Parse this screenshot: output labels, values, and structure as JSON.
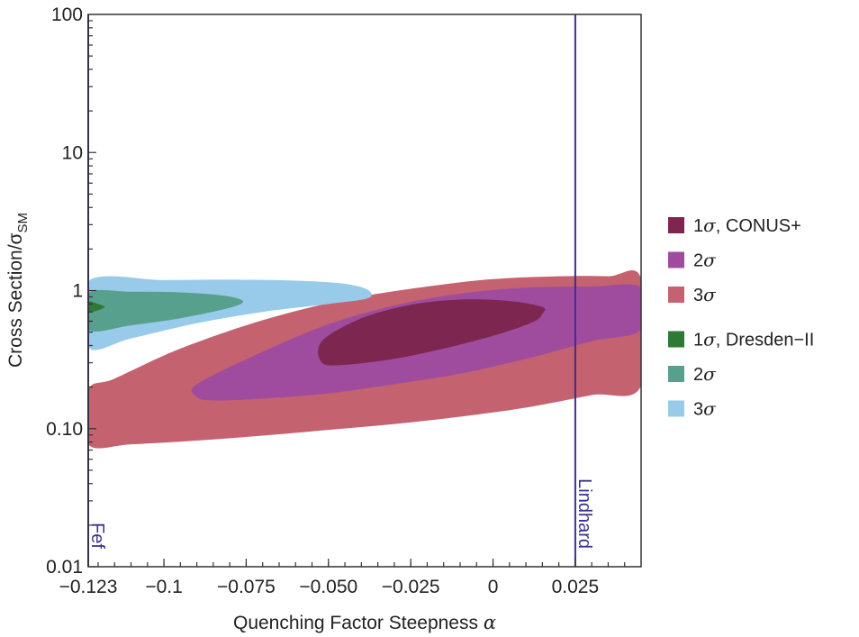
{
  "chart_data": {
    "type": "contour",
    "xlabel": "Quenching Factor Steepness",
    "xlabel_symbol": "α",
    "ylabel": "Cross Section/σ",
    "ylabel_subscript": "SM",
    "xlim": [
      -0.123,
      0.045
    ],
    "ylim": [
      0.01,
      100
    ],
    "yscale": "log",
    "x_ticks": [
      {
        "value": -0.123,
        "label": "−0.123"
      },
      {
        "value": -0.1,
        "label": "−0.1"
      },
      {
        "value": -0.075,
        "label": "−0.075"
      },
      {
        "value": -0.05,
        "label": "−0.050"
      },
      {
        "value": -0.025,
        "label": "−0.025"
      },
      {
        "value": 0,
        "label": "0"
      },
      {
        "value": 0.025,
        "label": "0.025"
      }
    ],
    "y_ticks": [
      {
        "value": 0.01,
        "label": "0.01"
      },
      {
        "value": 0.1,
        "label": "0.10"
      },
      {
        "value": 1,
        "label": "1"
      },
      {
        "value": 10,
        "label": "10"
      },
      {
        "value": 100,
        "label": "100"
      }
    ],
    "vertical_lines": [
      {
        "name": "Fef",
        "x": -0.123,
        "color": "#3a2f8f"
      },
      {
        "name": "Lindhard",
        "x": 0.025,
        "color": "#3a2f8f"
      }
    ],
    "regions": [
      {
        "label": "3σ",
        "group": "CONUS+",
        "color": "#c4626f",
        "x": [
          0.045,
          0.035,
          0.02,
          0.0,
          -0.02,
          -0.045,
          -0.07,
          -0.095,
          -0.115,
          -0.123,
          -0.123,
          -0.11,
          -0.09,
          -0.07,
          -0.05,
          -0.03,
          -0.01,
          0.01,
          0.03,
          0.045
        ],
        "y": [
          1.22,
          1.27,
          1.27,
          1.21,
          1.07,
          0.86,
          0.61,
          0.38,
          0.23,
          0.19,
          0.077,
          0.077,
          0.082,
          0.089,
          0.098,
          0.108,
          0.122,
          0.142,
          0.175,
          0.205
        ]
      },
      {
        "label": "2σ",
        "group": "CONUS+",
        "color": "#a04c9e",
        "x": [
          0.045,
          0.03,
          0.01,
          -0.01,
          -0.03,
          -0.05,
          -0.07,
          -0.09,
          -0.09,
          -0.085,
          -0.07,
          -0.05,
          -0.03,
          -0.01,
          0.01,
          0.03,
          0.045
        ],
        "y": [
          1.05,
          1.07,
          1.05,
          0.95,
          0.78,
          0.57,
          0.36,
          0.21,
          0.17,
          0.16,
          0.165,
          0.18,
          0.21,
          0.25,
          0.32,
          0.43,
          0.52
        ]
      },
      {
        "label": "1σ, CONUS+",
        "group": "CONUS+",
        "color": "#7d2650",
        "x": [
          0.015,
          0.005,
          -0.01,
          -0.025,
          -0.04,
          -0.052,
          -0.052,
          -0.045,
          -0.03,
          -0.015,
          0.0,
          0.012,
          0.015
        ],
        "y": [
          0.76,
          0.84,
          0.86,
          0.79,
          0.63,
          0.43,
          0.3,
          0.29,
          0.32,
          0.38,
          0.47,
          0.59,
          0.68
        ]
      },
      {
        "label": "3σ",
        "group": "Dresden-II",
        "color": "#98cbea",
        "x": [
          -0.123,
          -0.1,
          -0.08,
          -0.06,
          -0.045,
          -0.038,
          -0.038,
          -0.05,
          -0.07,
          -0.09,
          -0.11,
          -0.123
        ],
        "y": [
          1.17,
          1.19,
          1.2,
          1.18,
          1.12,
          1.01,
          0.88,
          0.8,
          0.7,
          0.58,
          0.45,
          0.39
        ]
      },
      {
        "label": "2σ",
        "group": "Dresden-II",
        "color": "#58a08e",
        "x": [
          -0.123,
          -0.11,
          -0.095,
          -0.082,
          -0.076,
          -0.08,
          -0.095,
          -0.11,
          -0.123
        ],
        "y": [
          0.96,
          0.98,
          0.97,
          0.92,
          0.84,
          0.75,
          0.63,
          0.56,
          0.52
        ]
      },
      {
        "label": "1σ, Dresden-II",
        "group": "Dresden-II",
        "color": "#2e7a35",
        "x": [
          -0.123,
          -0.12,
          -0.118,
          -0.12,
          -0.123
        ],
        "y": [
          0.83,
          0.8,
          0.76,
          0.72,
          0.7
        ]
      }
    ],
    "legend": {
      "placement": "right",
      "items": [
        {
          "prefix": "1",
          "symbol": "σ",
          "suffix": ", CONUS+",
          "color": "#7d2650"
        },
        {
          "prefix": "2",
          "symbol": "σ",
          "suffix": "",
          "color": "#a04c9e"
        },
        {
          "prefix": "3",
          "symbol": "σ",
          "suffix": "",
          "color": "#c4626f"
        },
        {
          "prefix": "1",
          "symbol": "σ",
          "suffix": ", Dresden−II",
          "color": "#2e7a35"
        },
        {
          "prefix": "2",
          "symbol": "σ",
          "suffix": "",
          "color": "#58a08e"
        },
        {
          "prefix": "3",
          "symbol": "σ",
          "suffix": "",
          "color": "#98cbea"
        }
      ]
    }
  }
}
